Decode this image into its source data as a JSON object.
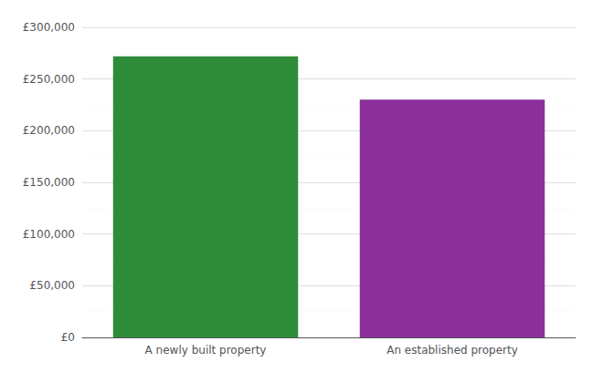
{
  "chart_data": {
    "type": "bar",
    "categories": [
      "A newly built property",
      "An established property"
    ],
    "values": [
      272000,
      230000
    ],
    "colors": [
      "#2e8b3a",
      "#8b2f9b"
    ],
    "ylim": [
      0,
      300000
    ],
    "yticks": [
      {
        "value": 0,
        "label": "£0"
      },
      {
        "value": 50000,
        "label": "£50,000"
      },
      {
        "value": 100000,
        "label": "£100,000"
      },
      {
        "value": 150000,
        "label": "£150,000"
      },
      {
        "value": 200000,
        "label": "£200,000"
      },
      {
        "value": 250000,
        "label": "£250,000"
      },
      {
        "value": 300000,
        "label": "£300,000"
      }
    ],
    "grid": true
  }
}
